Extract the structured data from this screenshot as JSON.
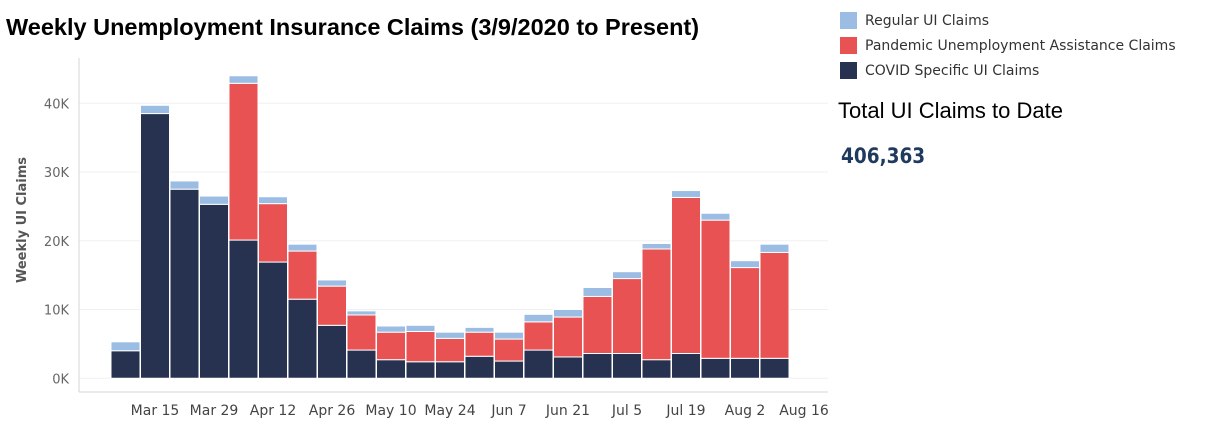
{
  "chart_data": {
    "type": "bar",
    "stacked": true,
    "title": "Weekly Unemployment Insurance Claims (3/9/2020 to Present)",
    "ylabel": "Weekly UI Claims",
    "xlabel": "",
    "ylim": [
      -2000,
      46000
    ],
    "yticks": [
      0,
      10000,
      20000,
      30000,
      40000
    ],
    "ytick_labels": [
      "0K",
      "10K",
      "20K",
      "30K",
      "40K"
    ],
    "grid": "horizontal",
    "weeks": [
      "Mar 8",
      "Mar 15",
      "Mar 22",
      "Mar 29",
      "Apr 5",
      "Apr 12",
      "Apr 19",
      "Apr 26",
      "May 3",
      "May 10",
      "May 17",
      "May 24",
      "May 31",
      "Jun 7",
      "Jun 14",
      "Jun 21",
      "Jun 28",
      "Jul 5",
      "Jul 12",
      "Jul 19",
      "Jul 26",
      "Aug 2",
      "Aug 9",
      "Aug 16"
    ],
    "x_tick_labels": [
      "Mar 15",
      "Mar 29",
      "Apr 12",
      "Apr 26",
      "May 10",
      "May 24",
      "Jun 7",
      "Jun 21",
      "Jul 5",
      "Jul 19",
      "Aug 2",
      "Aug 16"
    ],
    "series": [
      {
        "name": "COVID Specific UI Claims",
        "color": "#26324f",
        "values": [
          4000,
          38500,
          27500,
          25300,
          20100,
          16900,
          11500,
          7700,
          4100,
          2700,
          2400,
          2400,
          3200,
          2500,
          4100,
          3100,
          3600,
          3600,
          2700,
          3600,
          2900,
          2900,
          2900,
          0
        ]
      },
      {
        "name": "Pandemic Unemployment Assistance Claims",
        "color": "#e85253",
        "values": [
          0,
          0,
          0,
          0,
          22800,
          8500,
          7000,
          5700,
          5100,
          4000,
          4400,
          3400,
          3500,
          3200,
          4100,
          5800,
          8300,
          10900,
          16100,
          22700,
          20100,
          13200,
          15400,
          0
        ]
      },
      {
        "name": "Regular UI Claims",
        "color": "#9bbde3",
        "values": [
          1300,
          1200,
          1200,
          1200,
          1100,
          1000,
          1000,
          900,
          600,
          900,
          900,
          900,
          700,
          1000,
          1100,
          1100,
          1300,
          1000,
          800,
          1000,
          1000,
          1000,
          1200,
          0
        ]
      }
    ],
    "legend_order": [
      "Regular UI Claims",
      "Pandemic Unemployment Assistance Claims",
      "COVID Specific UI Claims"
    ]
  },
  "sidebar": {
    "total_title": "Total UI Claims to Date",
    "total_value": "406,363"
  }
}
